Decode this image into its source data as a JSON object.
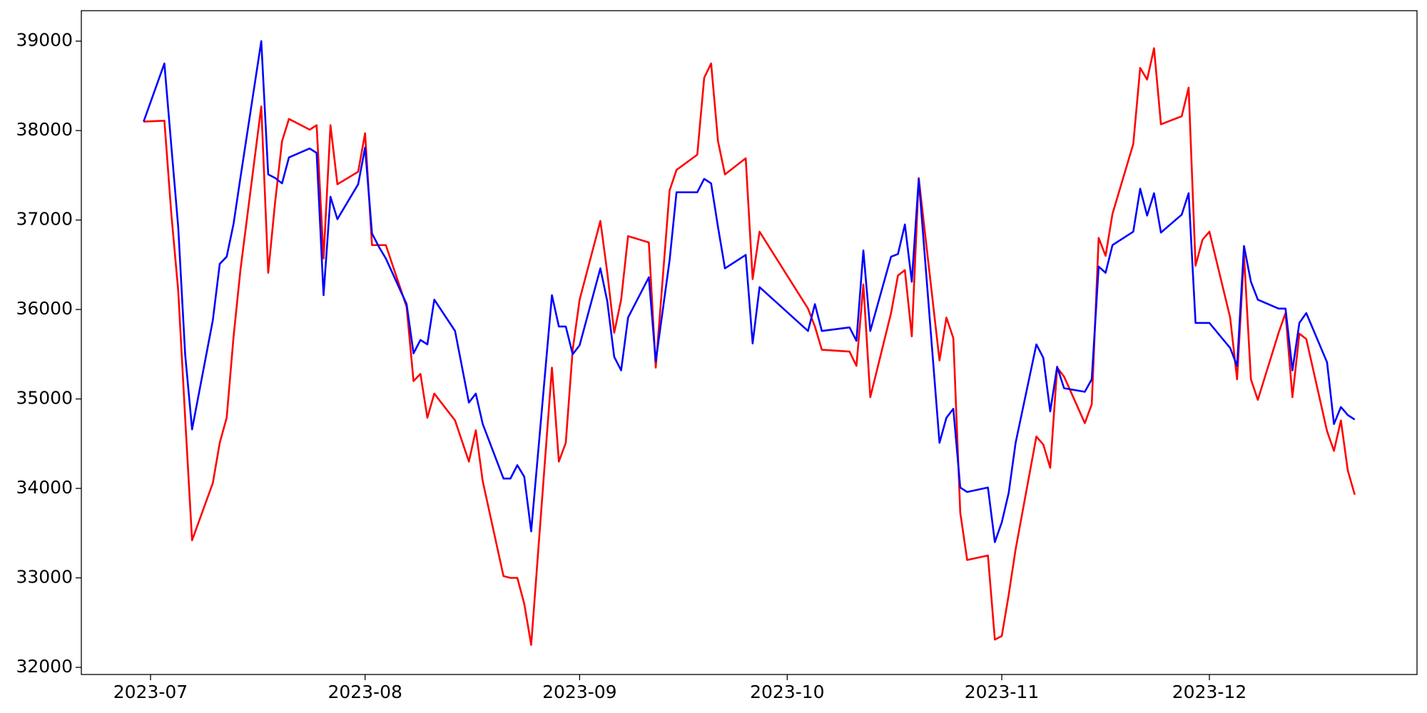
{
  "chart_data": {
    "type": "line",
    "x": [
      "2023-06-30",
      "2023-07-03",
      "2023-07-04",
      "2023-07-05",
      "2023-07-06",
      "2023-07-07",
      "2023-07-10",
      "2023-07-11",
      "2023-07-12",
      "2023-07-13",
      "2023-07-14",
      "2023-07-17",
      "2023-07-18",
      "2023-07-19",
      "2023-07-20",
      "2023-07-21",
      "2023-07-24",
      "2023-07-25",
      "2023-07-26",
      "2023-07-27",
      "2023-07-28",
      "2023-07-31",
      "2023-08-01",
      "2023-08-02",
      "2023-08-03",
      "2023-08-04",
      "2023-08-07",
      "2023-08-08",
      "2023-08-09",
      "2023-08-10",
      "2023-08-11",
      "2023-08-14",
      "2023-08-16",
      "2023-08-17",
      "2023-08-18",
      "2023-08-21",
      "2023-08-22",
      "2023-08-23",
      "2023-08-24",
      "2023-08-25",
      "2023-08-28",
      "2023-08-29",
      "2023-08-30",
      "2023-08-31",
      "2023-09-01",
      "2023-09-04",
      "2023-09-05",
      "2023-09-06",
      "2023-09-07",
      "2023-09-08",
      "2023-09-11",
      "2023-09-12",
      "2023-09-14",
      "2023-09-15",
      "2023-09-18",
      "2023-09-19",
      "2023-09-20",
      "2023-09-21",
      "2023-09-22",
      "2023-09-25",
      "2023-09-26",
      "2023-09-27",
      "2023-10-04",
      "2023-10-05",
      "2023-10-06",
      "2023-10-10",
      "2023-10-11",
      "2023-10-12",
      "2023-10-13",
      "2023-10-16",
      "2023-10-17",
      "2023-10-18",
      "2023-10-19",
      "2023-10-20",
      "2023-10-23",
      "2023-10-24",
      "2023-10-25",
      "2023-10-26",
      "2023-10-27",
      "2023-10-30",
      "2023-10-31",
      "2023-11-01",
      "2023-11-02",
      "2023-11-03",
      "2023-11-06",
      "2023-11-07",
      "2023-11-08",
      "2023-11-09",
      "2023-11-10",
      "2023-11-13",
      "2023-11-14",
      "2023-11-15",
      "2023-11-16",
      "2023-11-17",
      "2023-11-20",
      "2023-11-21",
      "2023-11-22",
      "2023-11-23",
      "2023-11-24",
      "2023-11-27",
      "2023-11-28",
      "2023-11-29",
      "2023-11-30",
      "2023-12-01",
      "2023-12-04",
      "2023-12-05",
      "2023-12-06",
      "2023-12-07",
      "2023-12-08",
      "2023-12-11",
      "2023-12-12",
      "2023-12-13",
      "2023-12-14",
      "2023-12-15",
      "2023-12-18",
      "2023-12-19",
      "2023-12-20",
      "2023-12-21",
      "2023-12-22"
    ],
    "series": [
      {
        "color": "#ff0000",
        "values": [
          38100,
          38110,
          37070,
          36210,
          34790,
          33420,
          34060,
          34510,
          34790,
          35700,
          36450,
          38270,
          36410,
          37200,
          37880,
          38130,
          38010,
          38060,
          36570,
          38060,
          37400,
          37540,
          37970,
          36720,
          36720,
          36720,
          36030,
          35200,
          35280,
          34790,
          35060,
          34760,
          34300,
          34650,
          34080,
          33020,
          33000,
          33000,
          32710,
          32250,
          35350,
          34300,
          34510,
          35550,
          36110,
          36990,
          36410,
          35740,
          36110,
          36820,
          36750,
          35350,
          37330,
          37560,
          37730,
          38590,
          38750,
          37880,
          37510,
          37690,
          36340,
          36870,
          36010,
          35810,
          35550,
          35530,
          35370,
          36280,
          35020,
          35960,
          36380,
          36440,
          35700,
          37470,
          35430,
          35910,
          35680,
          33730,
          33200,
          33250,
          32310,
          32350,
          32810,
          33320,
          34580,
          34490,
          34230,
          35350,
          35250,
          34730,
          34940,
          36800,
          36600,
          37070,
          37850,
          38700,
          38570,
          38920,
          38070,
          38160,
          38480,
          36490,
          36780,
          36870,
          35910,
          35220,
          36610,
          35220,
          34990,
          35740,
          35960,
          35020,
          35730,
          35670,
          34640,
          34420,
          34760,
          34200,
          33930
        ]
      },
      {
        "color": "#0000ff",
        "values": [
          38100,
          38750,
          37830,
          36920,
          35500,
          34660,
          35880,
          36510,
          36590,
          36960,
          37480,
          39000,
          37510,
          37470,
          37410,
          37700,
          37800,
          37750,
          36160,
          37260,
          37010,
          37400,
          37810,
          36850,
          36700,
          36570,
          36060,
          35510,
          35660,
          35610,
          36110,
          35760,
          34960,
          35060,
          34720,
          34110,
          34110,
          34260,
          34130,
          33520,
          36160,
          35810,
          35810,
          35500,
          35600,
          36460,
          36090,
          35470,
          35320,
          35910,
          36360,
          35420,
          36550,
          37310,
          37310,
          37460,
          37410,
          36920,
          36460,
          36610,
          35620,
          36250,
          35760,
          36060,
          35760,
          35800,
          35650,
          36660,
          35760,
          36590,
          36620,
          36950,
          36310,
          37460,
          34510,
          34790,
          34890,
          34010,
          33960,
          34010,
          33400,
          33620,
          33950,
          34510,
          35610,
          35460,
          34860,
          35360,
          35120,
          35080,
          35220,
          36480,
          36410,
          36720,
          36870,
          37350,
          37050,
          37300,
          36860,
          37060,
          37300,
          35850,
          35850,
          35850,
          35570,
          35370,
          36710,
          36310,
          36110,
          36010,
          36010,
          35320,
          35850,
          35960,
          35410,
          34720,
          34910,
          34820,
          34770
        ]
      }
    ],
    "xlim": [
      "2023-06-21",
      "2023-12-31"
    ],
    "xticks": [
      {
        "value": "2023-07-01",
        "label": "2023-07"
      },
      {
        "value": "2023-08-01",
        "label": "2023-08"
      },
      {
        "value": "2023-09-01",
        "label": "2023-09"
      },
      {
        "value": "2023-10-01",
        "label": "2023-10"
      },
      {
        "value": "2023-11-01",
        "label": "2023-11"
      },
      {
        "value": "2023-12-01",
        "label": "2023-12"
      }
    ],
    "ylim": [
      31920,
      39340
    ],
    "yticks": [
      32000,
      33000,
      34000,
      35000,
      36000,
      37000,
      38000,
      39000
    ],
    "grid": false
  }
}
